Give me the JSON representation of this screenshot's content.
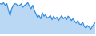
{
  "chart_data": {
    "type": "area",
    "color": "#3a8fdf",
    "x": [
      0,
      1,
      2,
      3,
      4,
      5,
      6,
      7,
      8,
      9,
      10,
      11,
      12,
      13,
      14,
      15,
      16,
      17,
      18,
      19,
      20,
      21,
      22,
      23,
      24,
      25,
      26,
      27,
      28,
      29,
      30,
      31,
      32,
      33,
      34,
      35,
      36,
      37,
      38,
      39,
      40,
      41,
      42,
      43,
      44,
      45,
      46,
      47,
      48,
      49,
      50,
      51,
      52,
      53,
      54,
      55,
      56,
      57,
      58,
      59
    ],
    "values": [
      97,
      95,
      100,
      92,
      97,
      76,
      59,
      81,
      92,
      97,
      95,
      89,
      92,
      97,
      86,
      92,
      95,
      100,
      89,
      81,
      92,
      76,
      65,
      54,
      59,
      49,
      68,
      57,
      62,
      51,
      54,
      59,
      46,
      57,
      49,
      54,
      43,
      51,
      59,
      49,
      54,
      46,
      57,
      51,
      43,
      49,
      41,
      35,
      43,
      32,
      30,
      38,
      24,
      19,
      27,
      22,
      16,
      24,
      32,
      38
    ],
    "xlim": [
      0,
      59
    ],
    "ylim": [
      0,
      100
    ],
    "tick_labels": false,
    "grid": false
  }
}
